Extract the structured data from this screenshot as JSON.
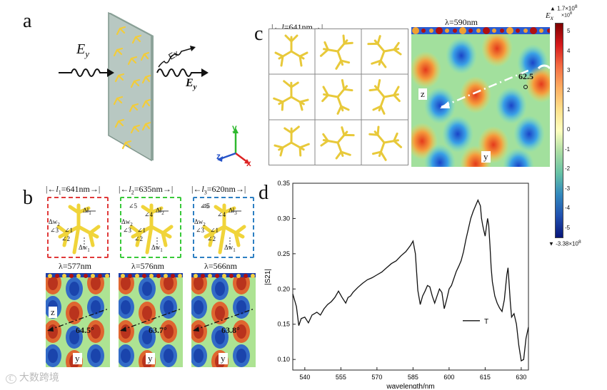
{
  "panels": {
    "a": "a",
    "b": "b",
    "c": "c",
    "d": "d"
  },
  "panel_a": {
    "ey_in": "E",
    "ey_in_sub": "y",
    "ex_label": "Ex",
    "ey_out": "E",
    "ey_out_sub": "y",
    "axes": {
      "z": "z",
      "x": "x",
      "y": "y"
    }
  },
  "panel_b": {
    "cells": [
      {
        "period": "l1=641nm",
        "period_main": "l",
        "period_sub": "1",
        "period_val": "=641nm",
        "color": "#e03a3a",
        "lambda": "λ=577nm",
        "angle": "64.5°",
        "z": "z",
        "y": "y",
        "annotations": {
          "dl": "Δl",
          "dl_sub": "1",
          "dw": "Δw",
          "dw_sub": "1",
          "dw2": "Δw",
          "dw2_sub": "2",
          "a1": "∠1",
          "a2": "∠2",
          "a3": "∠3"
        }
      },
      {
        "period": "l2=635nm",
        "period_main": "l",
        "period_sub": "2",
        "period_val": "=635nm",
        "color": "#39c93a",
        "lambda": "λ=576nm",
        "angle": "63.7°",
        "y": "y",
        "annotations": {
          "dl": "Δl",
          "dl_sub": "2",
          "dw": "Δw",
          "dw_sub": "1",
          "dw2": "Δw",
          "dw2_sub": "2",
          "a1": "∠1",
          "a2": "∠2",
          "a3": "∠3",
          "a4": "∠4",
          "a5": "∠5"
        }
      },
      {
        "period": "l3=620nm",
        "period_main": "l",
        "period_sub": "3",
        "period_val": "=620nm",
        "color": "#2d7fc2",
        "lambda": "λ=566nm",
        "angle": "63.8°",
        "y": "y",
        "annotations": {
          "dl": "Δl",
          "dl_sub": "3",
          "dw": "Δw",
          "dw_sub": "1",
          "dw2": "Δw",
          "dw2_sub": "2",
          "a1": "∠1",
          "a2": "∠2",
          "a3": "∠3",
          "a4": "∠4",
          "a5": "∠5",
          "a6": "∠6"
        }
      }
    ]
  },
  "panel_c": {
    "period": "l=641nm",
    "period_main": "l",
    "period_val": "=641nm",
    "lambda": "λ=590nm",
    "angle": "62.5",
    "z": "z",
    "y": "y"
  },
  "colorbar": {
    "max_label": "▲ 1.7×10",
    "max_exp": "8",
    "min_label": "▼ -3.38×10",
    "min_exp": "8",
    "unit_title": "E",
    "unit_sub": "x",
    "unit_scale": "×10",
    "unit_scale_exp": "8",
    "ticks": [
      "5",
      "4",
      "3",
      "2",
      "1",
      "0",
      "-1",
      "-2",
      "-3",
      "-4",
      "-5"
    ],
    "colors": [
      "#7f0000",
      "#d7191c",
      "#f46d43",
      "#fdae61",
      "#fee08b",
      "#ffffbf",
      "#abdda4",
      "#66c2a5",
      "#3288bd",
      "#2050b0",
      "#08157a"
    ]
  },
  "chart_data": {
    "type": "line",
    "title": "",
    "xlabel": "wavelength/nm",
    "ylabel": "|S21|",
    "xlim": [
      535,
      633
    ],
    "ylim": [
      0.085,
      0.35
    ],
    "xticks": [
      540,
      555,
      570,
      585,
      600,
      615,
      630
    ],
    "yticks": [
      0.1,
      0.15,
      0.2,
      0.25,
      0.3,
      0.35
    ],
    "xtick_labels": [
      "540",
      "555",
      "570",
      "585",
      "600",
      "615",
      "630"
    ],
    "ytick_labels": [
      "0.10",
      "0.15",
      "0.20",
      "0.25",
      "0.30",
      "0.35"
    ],
    "legend": "T",
    "legend_position": "lower-right",
    "series": [
      {
        "name": "T",
        "x": [
          535,
          536.5,
          537.5,
          538.5,
          540,
          541.5,
          543,
          545,
          546.5,
          548,
          549.5,
          551,
          552.5,
          554,
          555.5,
          557,
          558,
          559,
          560,
          562,
          564,
          566,
          568,
          570,
          572,
          574,
          576,
          578,
          580,
          582,
          584,
          585,
          586,
          587,
          588,
          589,
          590,
          591,
          592,
          593,
          594,
          595,
          596,
          597,
          598,
          599,
          600,
          601,
          602,
          603,
          604,
          605,
          606,
          607,
          608,
          609,
          610,
          611,
          612,
          613,
          613.5,
          614,
          614.5,
          615,
          615.5,
          616,
          616.5,
          617,
          617.5,
          618,
          619,
          620,
          621,
          622,
          623,
          624,
          624.5,
          625,
          625.5,
          626,
          627,
          628,
          629,
          630,
          631,
          632,
          633
        ],
        "y": [
          0.193,
          0.175,
          0.148,
          0.158,
          0.16,
          0.152,
          0.163,
          0.167,
          0.163,
          0.172,
          0.178,
          0.182,
          0.188,
          0.197,
          0.188,
          0.18,
          0.188,
          0.19,
          0.195,
          0.202,
          0.208,
          0.213,
          0.216,
          0.22,
          0.224,
          0.23,
          0.236,
          0.24,
          0.247,
          0.253,
          0.262,
          0.268,
          0.25,
          0.198,
          0.178,
          0.19,
          0.197,
          0.205,
          0.203,
          0.19,
          0.18,
          0.19,
          0.2,
          0.195,
          0.172,
          0.185,
          0.2,
          0.205,
          0.215,
          0.225,
          0.232,
          0.24,
          0.253,
          0.27,
          0.285,
          0.3,
          0.31,
          0.318,
          0.326,
          0.318,
          0.3,
          0.29,
          0.282,
          0.275,
          0.288,
          0.3,
          0.29,
          0.262,
          0.23,
          0.21,
          0.19,
          0.18,
          0.173,
          0.168,
          0.185,
          0.22,
          0.23,
          0.205,
          0.18,
          0.16,
          0.165,
          0.15,
          0.12,
          0.098,
          0.1,
          0.13,
          0.146
        ]
      }
    ]
  },
  "watermark": "大数跨境"
}
